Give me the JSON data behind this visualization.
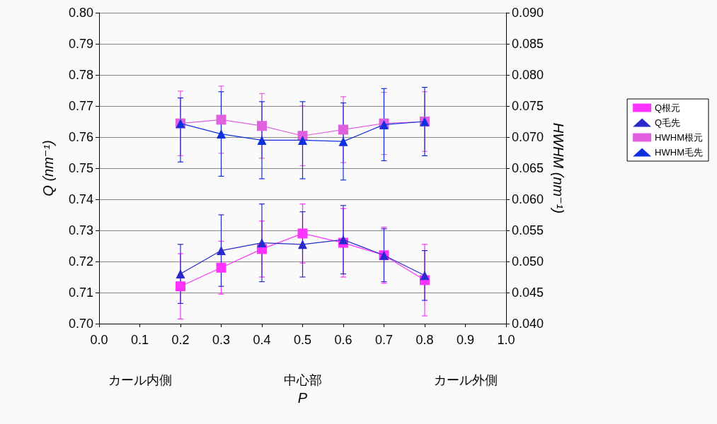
{
  "chart_data": {
    "type": "line",
    "xlabel": "P",
    "ylabel": "Q (nm⁻¹)",
    "y2label": "HWHM (nm⁻¹)",
    "x": [
      0.2,
      0.3,
      0.4,
      0.5,
      0.6,
      0.7,
      0.8
    ],
    "series": [
      {
        "name": "Q根元",
        "color": "#ff33ff",
        "marker": "square",
        "values": [
          0.712,
          0.718,
          0.724,
          0.729,
          0.726,
          0.722,
          0.714
        ],
        "errors": [
          0.0105,
          0.0085,
          0.009,
          0.0095,
          0.011,
          0.009,
          0.0115
        ]
      },
      {
        "name": "Q毛先",
        "color": "#2a2acc",
        "marker": "triangle",
        "values": [
          0.716,
          0.7235,
          0.726,
          0.7255,
          0.727,
          0.722,
          0.7155
        ],
        "errors": [
          0.0095,
          0.0115,
          0.0125,
          0.0105,
          0.011,
          0.0085,
          0.008
        ]
      },
      {
        "name": "HWHM根元",
        "color": "#e060e0",
        "marker": "square",
        "axis": "y2",
        "values": [
          0.0722,
          0.0728,
          0.0718,
          0.0702,
          0.0712,
          0.0722,
          0.0725
        ],
        "errors": [
          0.0052,
          0.0054,
          0.0052,
          0.0048,
          0.0053,
          0.005,
          0.0048
        ]
      },
      {
        "name": "HWHM毛先",
        "color": "#1030e0",
        "marker": "triangle",
        "axis": "y2",
        "values": [
          0.0722,
          0.0705,
          0.0695,
          0.0695,
          0.0693,
          0.072,
          0.0725
        ],
        "errors": [
          [
            0.066,
            0.0763
          ],
          0.0068,
          0.0062,
          0.0062,
          0.0062,
          0.0058,
          0.0055
        ]
      }
    ],
    "xlim": [
      0,
      1
    ],
    "xticks": [
      {
        "value": 0,
        "label": "0.0"
      },
      0.1,
      0.2,
      0.3,
      0.4,
      0.5,
      0.6,
      0.7,
      0.8,
      0.9,
      {
        "value": 1,
        "label": "1.0"
      }
    ],
    "ylim": [
      0.7,
      0.8
    ],
    "yticks": [
      {
        "value": 0.7,
        "label": "0.70"
      },
      0.71,
      0.72,
      0.73,
      0.74,
      0.75,
      0.76,
      0.77,
      0.78,
      0.79,
      {
        "value": 0.8,
        "label": "0.80"
      }
    ],
    "y2lim": [
      0.04,
      0.09
    ],
    "y2ticks": [
      {
        "value": 0.04,
        "label": "0.040"
      },
      0.045,
      {
        "value": 0.05,
        "label": "0.050"
      },
      0.055,
      {
        "value": 0.06,
        "label": "0.060"
      },
      0.065,
      {
        "value": 0.07,
        "label": "0.070"
      },
      0.075,
      {
        "value": 0.08,
        "label": "0.080"
      },
      0.085,
      {
        "value": 0.09,
        "label": "0.090"
      }
    ],
    "grid": "y",
    "legend": "right",
    "annotations": [
      "カール内側",
      "中心部",
      "カール外側"
    ]
  }
}
